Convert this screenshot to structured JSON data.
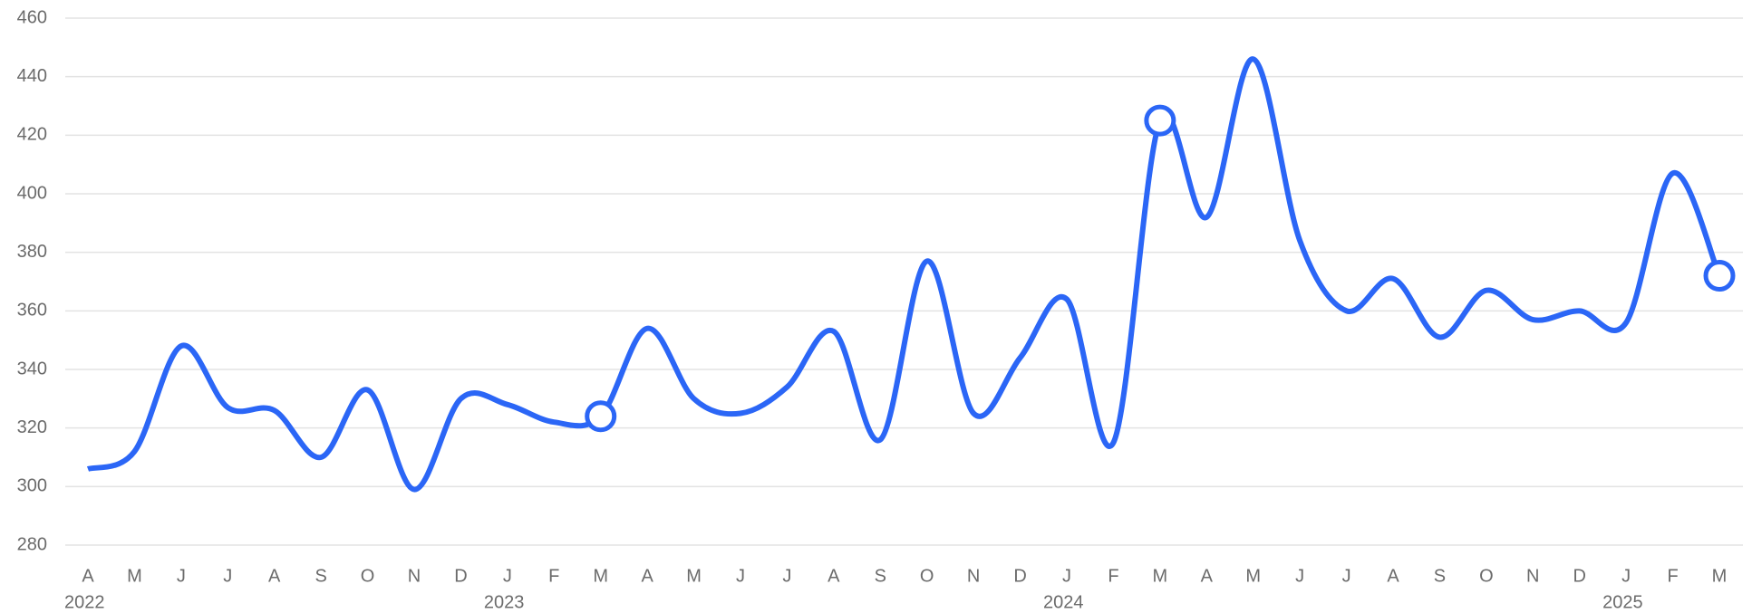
{
  "chart_data": {
    "type": "line",
    "categories": [
      "A",
      "M",
      "J",
      "J",
      "A",
      "S",
      "O",
      "N",
      "D",
      "J",
      "F",
      "M",
      "A",
      "M",
      "J",
      "J",
      "A",
      "S",
      "O",
      "N",
      "D",
      "J",
      "F",
      "M",
      "A",
      "M",
      "J",
      "J",
      "A",
      "S",
      "O",
      "N",
      "D",
      "J",
      "F",
      "M"
    ],
    "year_labels": [
      "2022",
      null,
      null,
      null,
      null,
      null,
      null,
      null,
      null,
      "2023",
      null,
      null,
      null,
      null,
      null,
      null,
      null,
      null,
      null,
      null,
      null,
      "2024",
      null,
      null,
      null,
      null,
      null,
      null,
      null,
      null,
      null,
      null,
      null,
      "2025",
      null,
      null
    ],
    "series": [
      {
        "color": "#2b66f6",
        "values": [
          306,
          312,
          348,
          327,
          326,
          310,
          333,
          299,
          330,
          328,
          322,
          324,
          354,
          330,
          325,
          334,
          353,
          316,
          377,
          325,
          344,
          364,
          315,
          425,
          392,
          446,
          384,
          360,
          371,
          351,
          367,
          357,
          360,
          356,
          407,
          372
        ]
      }
    ],
    "marker_indices": [
      11,
      23,
      35
    ],
    "ylim": [
      280,
      460
    ],
    "yticks": [
      280,
      300,
      320,
      340,
      360,
      380,
      400,
      420,
      440,
      460
    ],
    "grid": true
  }
}
